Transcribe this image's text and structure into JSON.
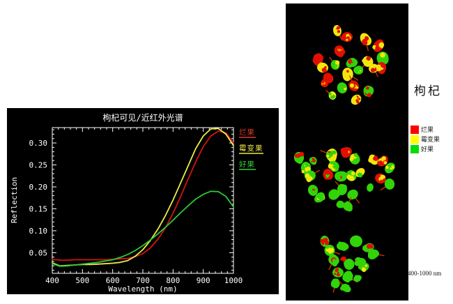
{
  "chart": {
    "title": "枸杞可见/近红外光谱",
    "xlabel": "Wavelength (nm)",
    "ylabel": "Reflection",
    "background": "#000000",
    "axis_color": "#ffffff",
    "legend": [
      {
        "label": "烂果",
        "color": "#e03a2a"
      },
      {
        "label": "霉变果",
        "color": "#efe74d"
      },
      {
        "label": "好果",
        "color": "#35d03a"
      }
    ]
  },
  "chart_data": {
    "type": "line",
    "title": "枸杞可见/近红外光谱",
    "xlabel": "Wavelength (nm)",
    "ylabel": "Reflection",
    "xlim": [
      400,
      1000
    ],
    "ylim": [
      0.003,
      0.335
    ],
    "xticks": [
      400,
      500,
      600,
      700,
      800,
      900,
      1000
    ],
    "yticks": [
      0.05,
      0.1,
      0.15,
      0.2,
      0.25,
      0.3
    ],
    "x_minor_step": 20,
    "y_minor_step": 0.01,
    "grid": false,
    "legend_position": "right-outside",
    "x": [
      400,
      425,
      450,
      475,
      500,
      525,
      550,
      575,
      600,
      625,
      650,
      675,
      700,
      725,
      750,
      775,
      800,
      825,
      850,
      875,
      900,
      925,
      950,
      975,
      1000
    ],
    "series": [
      {
        "name": "烂果",
        "color": "#d41414",
        "values": [
          0.035,
          0.033,
          0.033,
          0.034,
          0.034,
          0.034,
          0.034,
          0.034,
          0.035,
          0.036,
          0.037,
          0.041,
          0.048,
          0.061,
          0.081,
          0.107,
          0.14,
          0.178,
          0.218,
          0.257,
          0.292,
          0.316,
          0.327,
          0.323,
          0.3
        ]
      },
      {
        "name": "霉变果",
        "color": "#ecec4e",
        "values": [
          0.027,
          0.02,
          0.021,
          0.022,
          0.023,
          0.023,
          0.024,
          0.025,
          0.026,
          0.028,
          0.032,
          0.042,
          0.057,
          0.078,
          0.104,
          0.135,
          0.17,
          0.209,
          0.248,
          0.287,
          0.316,
          0.332,
          0.333,
          0.32,
          0.294
        ]
      },
      {
        "name": "好果",
        "color": "#2bcc33",
        "values": [
          0.025,
          0.019,
          0.02,
          0.022,
          0.024,
          0.026,
          0.028,
          0.031,
          0.034,
          0.039,
          0.046,
          0.055,
          0.066,
          0.079,
          0.093,
          0.108,
          0.124,
          0.141,
          0.157,
          0.172,
          0.183,
          0.19,
          0.189,
          0.178,
          0.154
        ]
      }
    ]
  },
  "panel": {
    "label": "枸杞",
    "caption": "400-1000 nm",
    "background": "#000000",
    "legend": [
      {
        "label": "烂果",
        "color": "#ff0000"
      },
      {
        "label": "霉变果",
        "color": "#ffff00"
      },
      {
        "label": "好果",
        "color": "#00dd00"
      }
    ],
    "palette": {
      "R": "#e01000",
      "Y": "#f2e70c",
      "G": "#31d409",
      "O": "#ff9100"
    },
    "berries": [
      [
        74,
        39,
        8,
        "YR"
      ],
      [
        88,
        48,
        8,
        "RY"
      ],
      [
        114,
        51,
        9,
        "YR"
      ],
      [
        133,
        61,
        9,
        "RY"
      ],
      [
        77,
        68,
        8,
        "RO"
      ],
      [
        46,
        81,
        9,
        "RY"
      ],
      [
        53,
        92,
        8,
        "YR"
      ],
      [
        71,
        88,
        7,
        "GY"
      ],
      [
        94,
        85,
        8,
        "GR"
      ],
      [
        118,
        83,
        8,
        "YR"
      ],
      [
        139,
        78,
        9,
        "GY"
      ],
      [
        137,
        92,
        8,
        "RY"
      ],
      [
        104,
        96,
        7,
        "GY"
      ],
      [
        89,
        101,
        9,
        "YR"
      ],
      [
        61,
        107,
        8,
        "RY"
      ],
      [
        126,
        93,
        7,
        "YR"
      ],
      [
        56,
        114,
        6,
        "RO"
      ],
      [
        81,
        121,
        8,
        "GY"
      ],
      [
        98,
        118,
        8,
        "RY"
      ],
      [
        119,
        126,
        8,
        "GR"
      ],
      [
        101,
        138,
        8,
        "YR"
      ],
      [
        67,
        132,
        6,
        "YG"
      ],
      [
        19,
        221,
        8,
        "GR"
      ],
      [
        29,
        236,
        9,
        "GY"
      ],
      [
        39,
        226,
        6,
        "GR"
      ],
      [
        35,
        247,
        8,
        "GY"
      ],
      [
        66,
        217,
        9,
        "YGR"
      ],
      [
        69,
        233,
        8,
        "GY"
      ],
      [
        87,
        213,
        8,
        "RY"
      ],
      [
        99,
        223,
        8,
        "GY"
      ],
      [
        60,
        245,
        8,
        "RG"
      ],
      [
        79,
        248,
        9,
        "GR"
      ],
      [
        94,
        247,
        8,
        "GY"
      ],
      [
        107,
        242,
        7,
        "YG"
      ],
      [
        126,
        224,
        8,
        "YR"
      ],
      [
        139,
        227,
        8,
        "RY"
      ],
      [
        149,
        236,
        8,
        "GY"
      ],
      [
        136,
        251,
        8,
        "RY"
      ],
      [
        149,
        259,
        8,
        "GR"
      ],
      [
        39,
        268,
        8,
        "GR"
      ],
      [
        49,
        278,
        8,
        "GY"
      ],
      [
        69,
        274,
        8,
        "G"
      ],
      [
        81,
        267,
        8,
        "GR"
      ],
      [
        96,
        274,
        8,
        "G"
      ],
      [
        79,
        288,
        6,
        "G"
      ],
      [
        89,
        291,
        7,
        "G"
      ],
      [
        121,
        264,
        6,
        "G"
      ],
      [
        56,
        341,
        8,
        "GR"
      ],
      [
        63,
        354,
        8,
        "GY"
      ],
      [
        81,
        348,
        8,
        "G"
      ],
      [
        101,
        341,
        9,
        "G"
      ],
      [
        118,
        351,
        8,
        "GR"
      ],
      [
        126,
        359,
        8,
        "G"
      ],
      [
        69,
        368,
        8,
        "GR"
      ],
      [
        83,
        366,
        4,
        "R"
      ],
      [
        91,
        374,
        8,
        "G"
      ],
      [
        106,
        371,
        8,
        "GR"
      ],
      [
        113,
        378,
        7,
        "GY"
      ],
      [
        75,
        386,
        8,
        "GR"
      ],
      [
        89,
        392,
        8,
        "G"
      ],
      [
        103,
        394,
        6,
        "G"
      ],
      [
        71,
        401,
        7,
        "G"
      ],
      [
        86,
        408,
        7,
        "G"
      ]
    ]
  }
}
